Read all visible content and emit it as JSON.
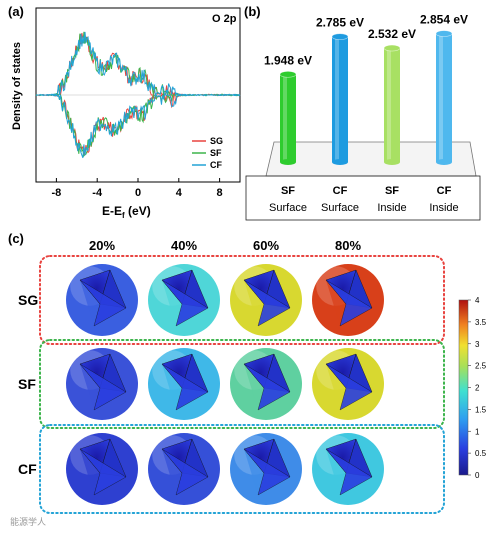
{
  "panel_a": {
    "label": "(a)",
    "tag": "O 2p",
    "ylabel": "Density of states",
    "xlabel_main": "E-E",
    "xlabel_sub": "f",
    "xlabel_unit": " (eV)",
    "xticks": [
      "-8",
      "-4",
      "0",
      "4",
      "8"
    ],
    "legend": [
      {
        "name": "SG",
        "color": "#e8433f"
      },
      {
        "name": "SF",
        "color": "#3cb44b"
      },
      {
        "name": "CF",
        "color": "#23a3d6"
      }
    ]
  },
  "panel_b": {
    "label": "(b)",
    "bars": [
      {
        "value_label": "1.948 eV",
        "line1": "SF",
        "line2": "Surface",
        "color": "#2ecc2e"
      },
      {
        "value_label": "2.785 eV",
        "line1": "CF",
        "line2": "Surface",
        "color": "#1e9be0"
      },
      {
        "value_label": "2.532 eV",
        "line1": "SF",
        "line2": "Inside",
        "color": "#a8e063"
      },
      {
        "value_label": "2.854 eV",
        "line1": "CF",
        "line2": "Inside",
        "color": "#4fb8ee"
      }
    ]
  },
  "panel_c": {
    "label": "(c)",
    "columns": [
      "20%",
      "40%",
      "60%",
      "80%"
    ],
    "rows": [
      {
        "name": "SG",
        "border": "#e8433f",
        "shells": [
          "#3a5fe0",
          "#4fd6d8",
          "#d8d830",
          "#d8401a"
        ]
      },
      {
        "name": "SF",
        "border": "#3cb44b",
        "shells": [
          "#3a52d8",
          "#3fb8e8",
          "#5fd0a0",
          "#d8d830"
        ]
      },
      {
        "name": "CF",
        "border": "#23a3d6",
        "shells": [
          "#2e40d0",
          "#3550d8",
          "#3f8ce8",
          "#40c8e0"
        ]
      }
    ],
    "colorbar_ticks": [
      "4",
      "3.5",
      "3",
      "2.5",
      "2",
      "1.5",
      "1",
      "0.5",
      "0"
    ]
  },
  "watermark": "能源学人"
}
